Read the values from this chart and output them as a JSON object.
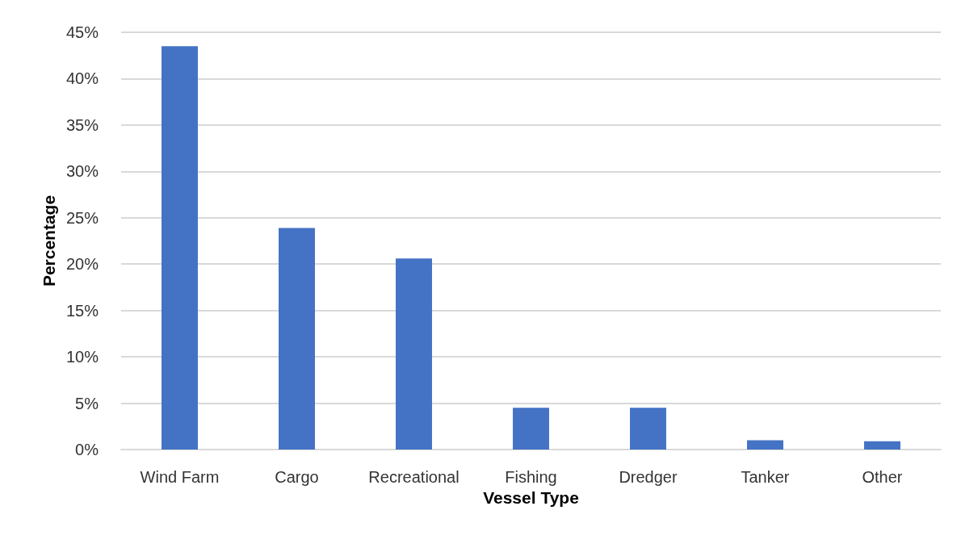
{
  "chart_data": {
    "type": "bar",
    "xlabel": "Vessel Type",
    "ylabel": "Percentage",
    "categories": [
      "Wind Farm",
      "Cargo",
      "Recreational",
      "Fishing",
      "Dredger",
      "Tanker",
      "Other"
    ],
    "values": [
      43.5,
      23.9,
      20.6,
      4.5,
      4.5,
      1.0,
      0.9
    ],
    "color": "#4472c4",
    "ylim": [
      0,
      45
    ],
    "yticks": [
      {
        "value": 0,
        "label": "0%"
      },
      {
        "value": 5,
        "label": "5%"
      },
      {
        "value": 10,
        "label": "10%"
      },
      {
        "value": 15,
        "label": "15%"
      },
      {
        "value": 20,
        "label": "20%"
      },
      {
        "value": 25,
        "label": "25%"
      },
      {
        "value": 30,
        "label": "30%"
      },
      {
        "value": 35,
        "label": "35%"
      },
      {
        "value": 40,
        "label": "40%"
      },
      {
        "value": 45,
        "label": "45%"
      }
    ],
    "grid": "y"
  }
}
